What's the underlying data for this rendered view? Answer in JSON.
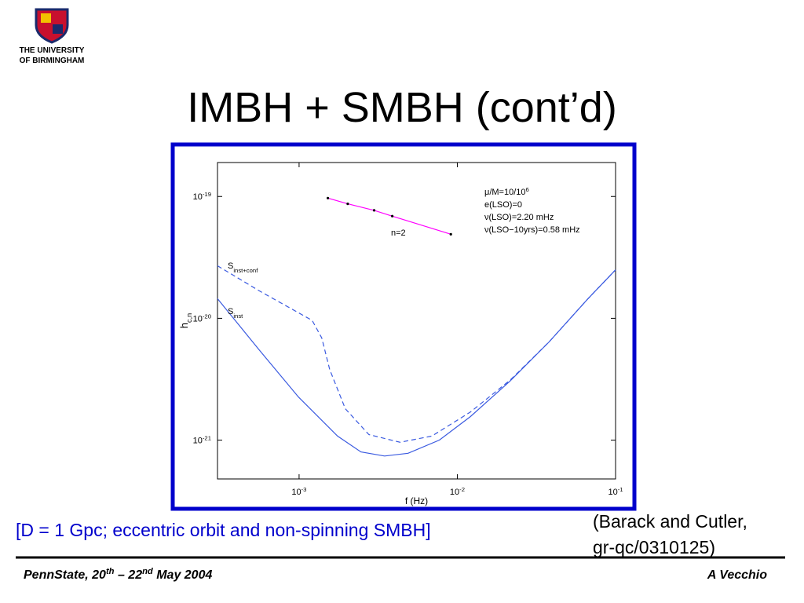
{
  "header": {
    "logo_line1": "THE UNIVERSITY",
    "logo_line2": "OF BIRMINGHAM",
    "title": "IMBH + SMBH (cont’d)"
  },
  "chart_data": {
    "type": "line",
    "xlabel": "f (Hz)",
    "ylabel": "h_c,n",
    "log_x": true,
    "log_y": true,
    "xlim": [
      0.000305,
      0.1
    ],
    "ylim": [
      4.8e-22,
      1.9e-19
    ],
    "xticks": [
      {
        "value": 0.001,
        "label": "10^-3"
      },
      {
        "value": 0.01,
        "label": "10^-2"
      },
      {
        "value": 0.1,
        "label": "10^-1"
      }
    ],
    "yticks": [
      {
        "value": 1e-21,
        "label": "10^-21"
      },
      {
        "value": 1e-20,
        "label": "10^-20"
      },
      {
        "value": 1e-19,
        "label": "10^-19"
      }
    ],
    "series": [
      {
        "name": "S_inst",
        "color": "#3a5ae0",
        "dashed": false,
        "markers": false,
        "x": [
          0.000305,
          0.00056,
          0.00099,
          0.00175,
          0.00246,
          0.00347,
          0.00488,
          0.0077,
          0.0121,
          0.0215,
          0.038,
          0.067,
          0.1
        ],
        "values": [
          1.45e-20,
          5.5e-21,
          2.26e-21,
          1.08e-21,
          8e-22,
          7.4e-22,
          7.8e-22,
          1e-21,
          1.56e-21,
          3.05e-21,
          6.4e-21,
          1.45e-20,
          2.5e-20
        ]
      },
      {
        "name": "S_inst+conf",
        "color": "#3a5ae0",
        "dashed": true,
        "markers": false,
        "x": [
          0.000305,
          0.00056,
          0.00121,
          0.00139,
          0.00156,
          0.00196,
          0.00276,
          0.00435,
          0.0069,
          0.0121,
          0.0215,
          0.038,
          0.067,
          0.1
        ],
        "values": [
          2.7e-20,
          1.68e-20,
          9.6e-21,
          6.9e-21,
          3.8e-21,
          1.81e-21,
          1.11e-21,
          9.6e-22,
          1.08e-21,
          1.7e-21,
          3.1e-21,
          6.4e-21,
          1.45e-20,
          2.5e-20
        ]
      },
      {
        "name": "n=2",
        "color": "#ff00ff",
        "dashed": false,
        "markers": true,
        "x": [
          0.00152,
          0.00203,
          0.00298,
          0.00388,
          0.0091
        ],
        "values": [
          9.7e-20,
          8.7e-20,
          7.7e-20,
          6.9e-20,
          4.9e-20
        ]
      }
    ],
    "annotations": [
      "μ/M=10/10^6",
      "e(LSO)=0",
      "ν(LSO)=2.20 mHz",
      "ν(LSO−10yrs)=0.58 mHz"
    ]
  },
  "caption": "[D = 1 Gpc; eccentric orbit and non-spinning SMBH]",
  "citation": {
    "line1": "(Barack and Cutler,",
    "line2": "gr-qc/0310125)"
  },
  "footer": {
    "left": "PennState, 20^th – 22^nd May 2004",
    "right": "A Vecchio"
  }
}
